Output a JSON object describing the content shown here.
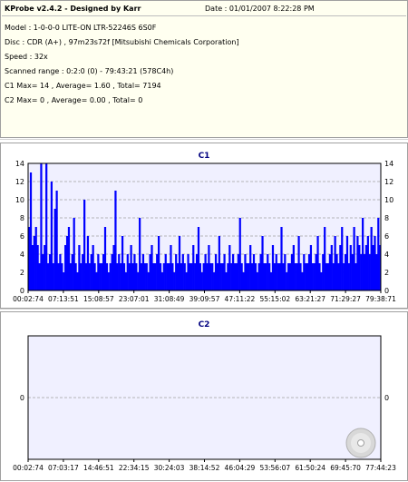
{
  "info": {
    "app_title": "KProbe v2.4.2 - Designed by Karr",
    "date": "Date : 01/01/2007 8:22:28 PM",
    "model": "Model : 1-0-0-0 LITE-ON LTR-52246S       6S0F",
    "disc": "Disc : CDR (A+) , 97m23s72f [Mitsubishi Chemicals Corporation]",
    "speed": "Speed : 32x",
    "scanned_range": "Scanned range : 0:2:0 (0) - 79:43:21 (578C4h)",
    "c1_summary": "C1 Max= 14 , Average= 1.60 , Total= 7194",
    "c2_summary": "C2 Max= 0 , Average= 0.00 , Total= 0"
  },
  "colors": {
    "plot_bg": "#f0f0ff",
    "bar": "#0000ff",
    "grid": "#a0a0a0",
    "title": "#000080",
    "panel_bg": "#fffff0"
  },
  "chart_data": [
    {
      "type": "bar",
      "title": "C1",
      "xlabel": "",
      "ylabel": "",
      "ylim": [
        0,
        14
      ],
      "yticks": [
        0,
        2,
        4,
        6,
        8,
        10,
        12,
        14
      ],
      "x_tick_labels": [
        "00:02:74",
        "07:13:51",
        "15:08:57",
        "23:07:01",
        "31:08:49",
        "39:09:57",
        "47:11:22",
        "55:15:02",
        "63:21:27",
        "71:29:27",
        "79:38:71"
      ],
      "grid": true,
      "summary": {
        "max": 14,
        "average": 1.6,
        "total": 7194
      },
      "values": [
        7,
        13,
        5,
        6,
        7,
        5,
        3,
        14,
        4,
        5,
        14,
        3,
        4,
        12,
        3,
        9,
        11,
        3,
        4,
        3,
        2,
        5,
        6,
        7,
        3,
        4,
        8,
        3,
        2,
        5,
        3,
        4,
        10,
        3,
        6,
        3,
        4,
        5,
        3,
        2,
        4,
        3,
        3,
        4,
        7,
        3,
        2,
        3,
        4,
        5,
        11,
        3,
        4,
        3,
        6,
        3,
        2,
        4,
        3,
        5,
        3,
        4,
        3,
        2,
        8,
        3,
        4,
        3,
        3,
        2,
        4,
        5,
        3,
        3,
        4,
        6,
        3,
        2,
        3,
        4,
        3,
        3,
        5,
        3,
        2,
        4,
        3,
        6,
        3,
        4,
        3,
        2,
        4,
        3,
        3,
        5,
        3,
        4,
        7,
        3,
        2,
        3,
        4,
        3,
        5,
        3,
        3,
        2,
        4,
        3,
        6,
        3,
        3,
        4,
        2,
        3,
        5,
        3,
        4,
        3,
        3,
        4,
        8,
        3,
        2,
        4,
        3,
        3,
        5,
        3,
        4,
        3,
        2,
        3,
        4,
        6,
        3,
        3,
        4,
        3,
        2,
        5,
        3,
        4,
        3,
        3,
        7,
        3,
        4,
        2,
        3,
        3,
        4,
        5,
        3,
        3,
        6,
        3,
        2,
        4,
        3,
        3,
        4,
        5,
        3,
        3,
        4,
        6,
        3,
        2,
        4,
        7,
        3,
        3,
        4,
        5,
        3,
        6,
        4,
        3,
        5,
        7,
        3,
        4,
        6,
        3,
        5,
        4,
        7,
        3,
        6,
        5,
        4,
        8,
        4,
        5,
        6,
        4,
        7,
        5,
        6,
        4,
        8,
        5
      ]
    },
    {
      "type": "bar",
      "title": "C2",
      "xlabel": "",
      "ylabel": "",
      "ylim": [
        -1,
        1
      ],
      "yticks": [
        0
      ],
      "x_tick_labels": [
        "00:02:74",
        "07:03:17",
        "14:46:51",
        "22:34:15",
        "30:24:03",
        "38:14:52",
        "46:04:29",
        "53:56:07",
        "61:50:24",
        "69:45:70",
        "77:44:23"
      ],
      "grid": true,
      "summary": {
        "max": 0,
        "average": 0.0,
        "total": 0
      },
      "values": []
    }
  ]
}
